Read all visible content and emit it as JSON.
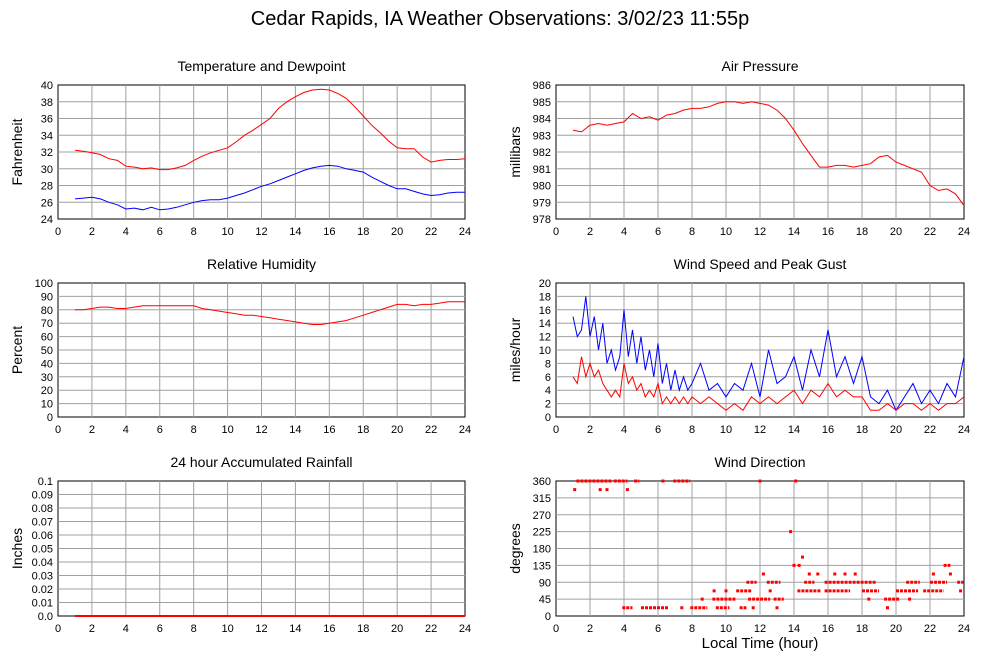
{
  "page": {
    "title": "Cedar Rapids, IA Weather Observations: 3/02/23 11:55p",
    "xlabel": "Local Time (hour)"
  },
  "colors": {
    "red": "#ff0000",
    "blue": "#0000ff",
    "grid": "#a0a0a0",
    "frame": "#000000"
  },
  "chart_data": [
    {
      "id": "temp",
      "type": "line",
      "title": "Temperature and Dewpoint",
      "ylabel": "Fahrenheit",
      "xlim": [
        0,
        24
      ],
      "ylim": [
        24,
        40
      ],
      "xticks": [
        "0",
        "2",
        "4",
        "6",
        "8",
        "10",
        "12",
        "14",
        "16",
        "18",
        "20",
        "22",
        "24"
      ],
      "yticks": [
        "24",
        "26",
        "28",
        "30",
        "32",
        "34",
        "36",
        "38",
        "40"
      ],
      "series": [
        {
          "color": "#ff0000",
          "x": [
            1,
            1.5,
            2,
            2.5,
            3,
            3.5,
            4,
            4.5,
            5,
            5.5,
            6,
            6.5,
            7,
            7.5,
            8,
            8.5,
            9,
            9.5,
            10,
            10.5,
            11,
            11.5,
            12,
            12.5,
            13,
            13.5,
            14,
            14.5,
            15,
            15.5,
            16,
            16.5,
            17,
            17.5,
            18,
            18.5,
            19,
            19.5,
            20,
            20.5,
            21,
            21.5,
            22,
            22.5,
            23,
            23.5,
            24
          ],
          "y": [
            32.2,
            32.1,
            31.9,
            31.7,
            31.2,
            31.0,
            30.3,
            30.2,
            30.0,
            30.1,
            29.9,
            29.9,
            30.1,
            30.4,
            31.0,
            31.5,
            31.9,
            32.2,
            32.5,
            33.2,
            34.0,
            34.6,
            35.3,
            36.0,
            37.2,
            38.0,
            38.6,
            39.1,
            39.4,
            39.5,
            39.4,
            39.0,
            38.4,
            37.4,
            36.3,
            35.2,
            34.3,
            33.3,
            32.5,
            32.4,
            32.4,
            31.4,
            30.8,
            31.0,
            31.1,
            31.1,
            31.2
          ]
        },
        {
          "color": "#0000ff",
          "x": [
            1,
            1.5,
            2,
            2.5,
            3,
            3.5,
            4,
            4.5,
            5,
            5.5,
            6,
            6.5,
            7,
            7.5,
            8,
            8.5,
            9,
            9.5,
            10,
            10.5,
            11,
            11.5,
            12,
            12.5,
            13,
            13.5,
            14,
            14.5,
            15,
            15.5,
            16,
            16.5,
            17,
            17.5,
            18,
            18.5,
            19,
            19.5,
            20,
            20.5,
            21,
            21.5,
            22,
            22.5,
            23,
            23.5,
            24
          ],
          "y": [
            26.4,
            26.5,
            26.6,
            26.4,
            26.0,
            25.7,
            25.2,
            25.3,
            25.1,
            25.4,
            25.1,
            25.2,
            25.4,
            25.7,
            26.0,
            26.2,
            26.3,
            26.3,
            26.5,
            26.8,
            27.1,
            27.5,
            27.9,
            28.2,
            28.6,
            29.0,
            29.4,
            29.8,
            30.1,
            30.3,
            30.4,
            30.3,
            30.0,
            29.8,
            29.6,
            29.0,
            28.5,
            28.0,
            27.6,
            27.6,
            27.3,
            27.0,
            26.8,
            26.9,
            27.1,
            27.2,
            27.2
          ]
        }
      ]
    },
    {
      "id": "pressure",
      "type": "line",
      "title": "Air Pressure",
      "ylabel": "millibars",
      "xlim": [
        0,
        24
      ],
      "ylim": [
        978,
        986
      ],
      "xticks": [
        "0",
        "2",
        "4",
        "6",
        "8",
        "10",
        "12",
        "14",
        "16",
        "18",
        "20",
        "22",
        "24"
      ],
      "yticks": [
        "978",
        "979",
        "980",
        "981",
        "982",
        "983",
        "984",
        "985",
        "986"
      ],
      "series": [
        {
          "color": "#ff0000",
          "x": [
            1,
            1.5,
            2,
            2.5,
            3,
            3.5,
            4,
            4.5,
            5,
            5.5,
            6,
            6.5,
            7,
            7.5,
            8,
            8.5,
            9,
            9.5,
            10,
            10.5,
            11,
            11.5,
            12,
            12.5,
            13,
            13.5,
            14,
            14.5,
            15,
            15.5,
            16,
            16.5,
            17,
            17.5,
            18,
            18.5,
            19,
            19.5,
            20,
            20.5,
            21,
            21.5,
            22,
            22.5,
            23,
            23.5,
            24
          ],
          "y": [
            983.3,
            983.2,
            983.6,
            983.7,
            983.6,
            983.7,
            983.8,
            984.3,
            984.0,
            984.1,
            983.9,
            984.2,
            984.3,
            984.5,
            984.6,
            984.6,
            984.7,
            984.9,
            985.0,
            985.0,
            984.9,
            985.0,
            984.9,
            984.8,
            984.5,
            984.0,
            983.3,
            982.5,
            981.8,
            981.1,
            981.1,
            981.2,
            981.2,
            981.1,
            981.2,
            981.3,
            981.7,
            981.8,
            981.4,
            981.2,
            981.0,
            980.8,
            980.0,
            979.7,
            979.8,
            979.5,
            978.8
          ]
        }
      ]
    },
    {
      "id": "humidity",
      "type": "line",
      "title": "Relative Humidity",
      "ylabel": "Percent",
      "xlim": [
        0,
        24
      ],
      "ylim": [
        0,
        100
      ],
      "xticks": [
        "0",
        "2",
        "4",
        "6",
        "8",
        "10",
        "12",
        "14",
        "16",
        "18",
        "20",
        "22",
        "24"
      ],
      "yticks": [
        "0",
        "10",
        "20",
        "30",
        "40",
        "50",
        "60",
        "70",
        "80",
        "90",
        "100"
      ],
      "series": [
        {
          "color": "#ff0000",
          "x": [
            1,
            1.5,
            2,
            2.5,
            3,
            3.5,
            4,
            4.5,
            5,
            5.5,
            6,
            6.5,
            7,
            7.5,
            8,
            8.5,
            9,
            9.5,
            10,
            10.5,
            11,
            11.5,
            12,
            12.5,
            13,
            13.5,
            14,
            14.5,
            15,
            15.5,
            16,
            16.5,
            17,
            17.5,
            18,
            18.5,
            19,
            19.5,
            20,
            20.5,
            21,
            21.5,
            22,
            22.5,
            23,
            23.5,
            24
          ],
          "y": [
            80,
            80,
            81,
            82,
            82,
            81,
            81,
            82,
            83,
            83,
            83,
            83,
            83,
            83,
            83,
            81,
            80,
            79,
            78,
            77,
            76,
            76,
            75,
            74,
            73,
            72,
            71,
            70,
            69,
            69,
            70,
            71,
            72,
            74,
            76,
            78,
            80,
            82,
            84,
            84,
            83,
            84,
            84,
            85,
            86,
            86,
            86
          ]
        }
      ]
    },
    {
      "id": "wind",
      "type": "line",
      "title": "Wind Speed and Peak Gust",
      "ylabel": "miles/hour",
      "xlim": [
        0,
        24
      ],
      "ylim": [
        0,
        20
      ],
      "xticks": [
        "0",
        "2",
        "4",
        "6",
        "8",
        "10",
        "12",
        "14",
        "16",
        "18",
        "20",
        "22",
        "24"
      ],
      "yticks": [
        "0",
        "2",
        "4",
        "6",
        "8",
        "10",
        "12",
        "14",
        "16",
        "18",
        "20"
      ],
      "series": [
        {
          "color": "#0000ff",
          "x": [
            1,
            1.25,
            1.5,
            1.75,
            2,
            2.25,
            2.5,
            2.75,
            3,
            3.25,
            3.5,
            3.75,
            4,
            4.25,
            4.5,
            4.75,
            5,
            5.25,
            5.5,
            5.75,
            6,
            6.25,
            6.5,
            6.75,
            7,
            7.25,
            7.5,
            7.75,
            8,
            8.5,
            9,
            9.5,
            10,
            10.5,
            11,
            11.5,
            12,
            12.5,
            13,
            13.5,
            14,
            14.5,
            15,
            15.5,
            16,
            16.5,
            17,
            17.5,
            18,
            18.5,
            19,
            19.5,
            20,
            20.5,
            21,
            21.5,
            22,
            22.5,
            23,
            23.5,
            24
          ],
          "y": [
            15,
            12,
            13,
            18,
            12,
            15,
            10,
            14,
            8,
            10,
            7,
            9,
            16,
            9,
            13,
            8,
            12,
            7,
            10,
            6,
            11,
            5,
            8,
            4,
            7,
            4,
            6,
            4,
            5,
            8,
            4,
            5,
            3,
            5,
            4,
            8,
            3,
            10,
            5,
            6,
            9,
            4,
            10,
            6,
            13,
            6,
            9,
            5,
            9,
            3,
            2,
            4,
            1,
            3,
            5,
            2,
            4,
            2,
            5,
            3,
            9
          ]
        },
        {
          "color": "#ff0000",
          "x": [
            1,
            1.25,
            1.5,
            1.75,
            2,
            2.25,
            2.5,
            2.75,
            3,
            3.25,
            3.5,
            3.75,
            4,
            4.25,
            4.5,
            4.75,
            5,
            5.25,
            5.5,
            5.75,
            6,
            6.25,
            6.5,
            6.75,
            7,
            7.25,
            7.5,
            7.75,
            8,
            8.5,
            9,
            9.5,
            10,
            10.5,
            11,
            11.5,
            12,
            12.5,
            13,
            13.5,
            14,
            14.5,
            15,
            15.5,
            16,
            16.5,
            17,
            17.5,
            18,
            18.5,
            19,
            19.5,
            20,
            20.5,
            21,
            21.5,
            22,
            22.5,
            23,
            23.5,
            24
          ],
          "y": [
            6,
            5,
            9,
            6,
            8,
            6,
            7,
            5,
            4,
            3,
            4,
            3,
            8,
            5,
            6,
            4,
            5,
            3,
            4,
            3,
            5,
            2,
            3,
            2,
            3,
            2,
            3,
            2,
            3,
            2,
            3,
            2,
            1,
            2,
            1,
            3,
            2,
            3,
            2,
            3,
            4,
            2,
            4,
            3,
            5,
            3,
            4,
            3,
            3,
            1,
            1,
            2,
            1,
            2,
            2,
            1,
            2,
            1,
            2,
            2,
            3
          ]
        }
      ]
    },
    {
      "id": "rainfall",
      "type": "line",
      "title": "24 hour Accumulated Rainfall",
      "ylabel": "Inches",
      "xlim": [
        0,
        24
      ],
      "ylim": [
        0,
        0.1
      ],
      "xticks": [
        "0",
        "2",
        "4",
        "6",
        "8",
        "10",
        "12",
        "14",
        "16",
        "18",
        "20",
        "22",
        "24"
      ],
      "yticks": [
        "0.0",
        "0.01",
        "0.02",
        "0.03",
        "0.04",
        "0.05",
        "0.06",
        "0.07",
        "0.08",
        "0.09",
        "0.1"
      ],
      "series": [
        {
          "color": "#ff0000",
          "x": [
            1,
            24
          ],
          "y": [
            0,
            0
          ]
        }
      ]
    },
    {
      "id": "direction",
      "type": "scatter",
      "title": "Wind Direction",
      "ylabel": "degrees",
      "xlim": [
        0,
        24
      ],
      "ylim": [
        0,
        360
      ],
      "xticks": [
        "0",
        "2",
        "4",
        "6",
        "8",
        "10",
        "12",
        "14",
        "16",
        "18",
        "20",
        "22",
        "24"
      ],
      "yticks": [
        "0",
        "45",
        "90",
        "135",
        "180",
        "225",
        "270",
        "315",
        "360"
      ],
      "segments": [
        {
          "x1": 1.2,
          "x2": 3.3,
          "y": 360
        },
        {
          "x1": 3.4,
          "x2": 4.2,
          "y": 360
        },
        {
          "x1": 4.6,
          "x2": 4.9,
          "y": 360
        },
        {
          "x1": 6.2,
          "x2": 6.4,
          "y": 360
        },
        {
          "x1": 6.9,
          "x2": 7.9,
          "y": 360
        },
        {
          "x1": 3.9,
          "x2": 4.5,
          "y": 22
        },
        {
          "x1": 5.0,
          "x2": 6.6,
          "y": 22
        },
        {
          "x1": 7.9,
          "x2": 8.9,
          "y": 22
        },
        {
          "x1": 9.4,
          "x2": 10.2,
          "y": 22
        },
        {
          "x1": 10.8,
          "x2": 11.2,
          "y": 22
        },
        {
          "x1": 9.2,
          "x2": 10.6,
          "y": 45
        },
        {
          "x1": 11.3,
          "x2": 12.6,
          "y": 45
        },
        {
          "x1": 12.8,
          "x2": 13.4,
          "y": 45
        },
        {
          "x1": 10.6,
          "x2": 11.5,
          "y": 67
        },
        {
          "x1": 14.2,
          "x2": 15.6,
          "y": 67
        },
        {
          "x1": 15.8,
          "x2": 17.3,
          "y": 67
        },
        {
          "x1": 18.0,
          "x2": 19.0,
          "y": 67
        },
        {
          "x1": 20.0,
          "x2": 21.3,
          "y": 67
        },
        {
          "x1": 21.6,
          "x2": 22.8,
          "y": 67
        },
        {
          "x1": 11.2,
          "x2": 11.8,
          "y": 90
        },
        {
          "x1": 12.4,
          "x2": 13.2,
          "y": 90
        },
        {
          "x1": 14.6,
          "x2": 15.2,
          "y": 90
        },
        {
          "x1": 15.8,
          "x2": 18.8,
          "y": 90
        },
        {
          "x1": 20.6,
          "x2": 21.4,
          "y": 90
        },
        {
          "x1": 22.0,
          "x2": 23.0,
          "y": 90
        },
        {
          "x1": 23.6,
          "x2": 24.0,
          "y": 90
        },
        {
          "x1": 19.3,
          "x2": 20.2,
          "y": 45
        },
        {
          "x1": 22.8,
          "x2": 23.2,
          "y": 135
        }
      ],
      "points": [
        {
          "x": 1.1,
          "y": 337
        },
        {
          "x": 2.6,
          "y": 337
        },
        {
          "x": 3.0,
          "y": 337
        },
        {
          "x": 4.2,
          "y": 337
        },
        {
          "x": 7.4,
          "y": 22
        },
        {
          "x": 8.6,
          "y": 45
        },
        {
          "x": 9.3,
          "y": 67
        },
        {
          "x": 10.0,
          "y": 67
        },
        {
          "x": 11.6,
          "y": 22
        },
        {
          "x": 12.0,
          "y": 360
        },
        {
          "x": 12.2,
          "y": 112
        },
        {
          "x": 12.6,
          "y": 67
        },
        {
          "x": 13.0,
          "y": 22
        },
        {
          "x": 13.8,
          "y": 225
        },
        {
          "x": 14.0,
          "y": 135
        },
        {
          "x": 14.1,
          "y": 360
        },
        {
          "x": 14.3,
          "y": 135
        },
        {
          "x": 14.5,
          "y": 157
        },
        {
          "x": 14.9,
          "y": 112
        },
        {
          "x": 15.4,
          "y": 112
        },
        {
          "x": 16.4,
          "y": 112
        },
        {
          "x": 17.0,
          "y": 112
        },
        {
          "x": 17.6,
          "y": 112
        },
        {
          "x": 18.4,
          "y": 45
        },
        {
          "x": 19.5,
          "y": 22
        },
        {
          "x": 20.8,
          "y": 45
        },
        {
          "x": 22.2,
          "y": 112
        },
        {
          "x": 23.2,
          "y": 112
        },
        {
          "x": 23.8,
          "y": 67
        }
      ]
    }
  ]
}
